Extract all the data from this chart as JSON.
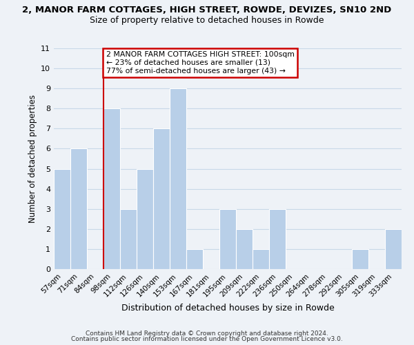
{
  "title": "2, MANOR FARM COTTAGES, HIGH STREET, ROWDE, DEVIZES, SN10 2ND",
  "subtitle": "Size of property relative to detached houses in Rowde",
  "xlabel": "Distribution of detached houses by size in Rowde",
  "ylabel": "Number of detached properties",
  "bin_labels": [
    "57sqm",
    "71sqm",
    "84sqm",
    "98sqm",
    "112sqm",
    "126sqm",
    "140sqm",
    "153sqm",
    "167sqm",
    "181sqm",
    "195sqm",
    "209sqm",
    "222sqm",
    "236sqm",
    "250sqm",
    "264sqm",
    "278sqm",
    "292sqm",
    "305sqm",
    "319sqm",
    "333sqm"
  ],
  "bar_heights": [
    5,
    6,
    0,
    8,
    3,
    5,
    7,
    9,
    1,
    0,
    3,
    2,
    1,
    3,
    0,
    0,
    0,
    0,
    1,
    0,
    2
  ],
  "bar_color": "#b8cfe8",
  "bar_edge_color": "#ffffff",
  "highlight_line_index": 3,
  "highlight_line_color": "#cc0000",
  "ylim": [
    0,
    11
  ],
  "yticks": [
    0,
    1,
    2,
    3,
    4,
    5,
    6,
    7,
    8,
    9,
    10,
    11
  ],
  "annotation_box_text": "2 MANOR FARM COTTAGES HIGH STREET: 100sqm\n← 23% of detached houses are smaller (13)\n77% of semi-detached houses are larger (43) →",
  "annotation_box_color": "#ffffff",
  "annotation_box_edge_color": "#cc0000",
  "footer_line1": "Contains HM Land Registry data © Crown copyright and database right 2024.",
  "footer_line2": "Contains public sector information licensed under the Open Government Licence v3.0.",
  "grid_color": "#c8d8e8",
  "background_color": "#eef2f7",
  "fig_bg_color": "#eef2f7"
}
